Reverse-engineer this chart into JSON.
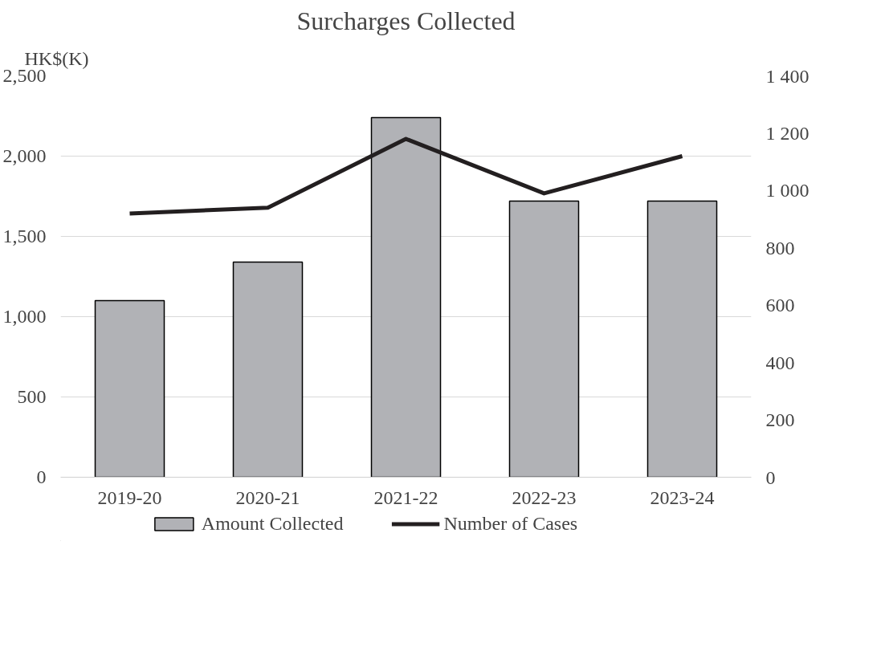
{
  "chart_data": {
    "type": "bar",
    "title": "Surcharges Collected",
    "ylabel": "HK$(K)",
    "categories": [
      "2019-20",
      "2020-21",
      "2021-22",
      "2022-23",
      "2023-24"
    ],
    "series": [
      {
        "name": "Amount Collected",
        "color": "#b1b2b6",
        "values": [
          1100,
          1340,
          2240,
          1720,
          1720
        ]
      },
      {
        "name": "Number of Cases",
        "type": "line",
        "axis": "y2",
        "color": "#231f20",
        "values": [
          920,
          940,
          1180,
          990,
          1120
        ]
      }
    ],
    "ylim": [
      0,
      2500
    ],
    "yticks": [
      {
        "value": 0,
        "label": "0"
      },
      {
        "value": 500,
        "label": "500"
      },
      {
        "value": 1000,
        "label": "1,000"
      },
      {
        "value": 1500,
        "label": "1,500"
      },
      {
        "value": 2000,
        "label": "2,000"
      },
      {
        "value": 2500,
        "label": "2,500"
      }
    ],
    "y2lim": [
      0,
      1400
    ],
    "y2ticks": [
      {
        "value": 0,
        "label": "0"
      },
      {
        "value": 200,
        "label": "200"
      },
      {
        "value": 400,
        "label": "400"
      },
      {
        "value": 600,
        "label": "600"
      },
      {
        "value": 800,
        "label": "800"
      },
      {
        "value": 1000,
        "label": "1 000"
      },
      {
        "value": 1200,
        "label": "1 200"
      },
      {
        "value": 1400,
        "label": "1 400"
      }
    ],
    "grid": "y",
    "legend": "bottom"
  }
}
